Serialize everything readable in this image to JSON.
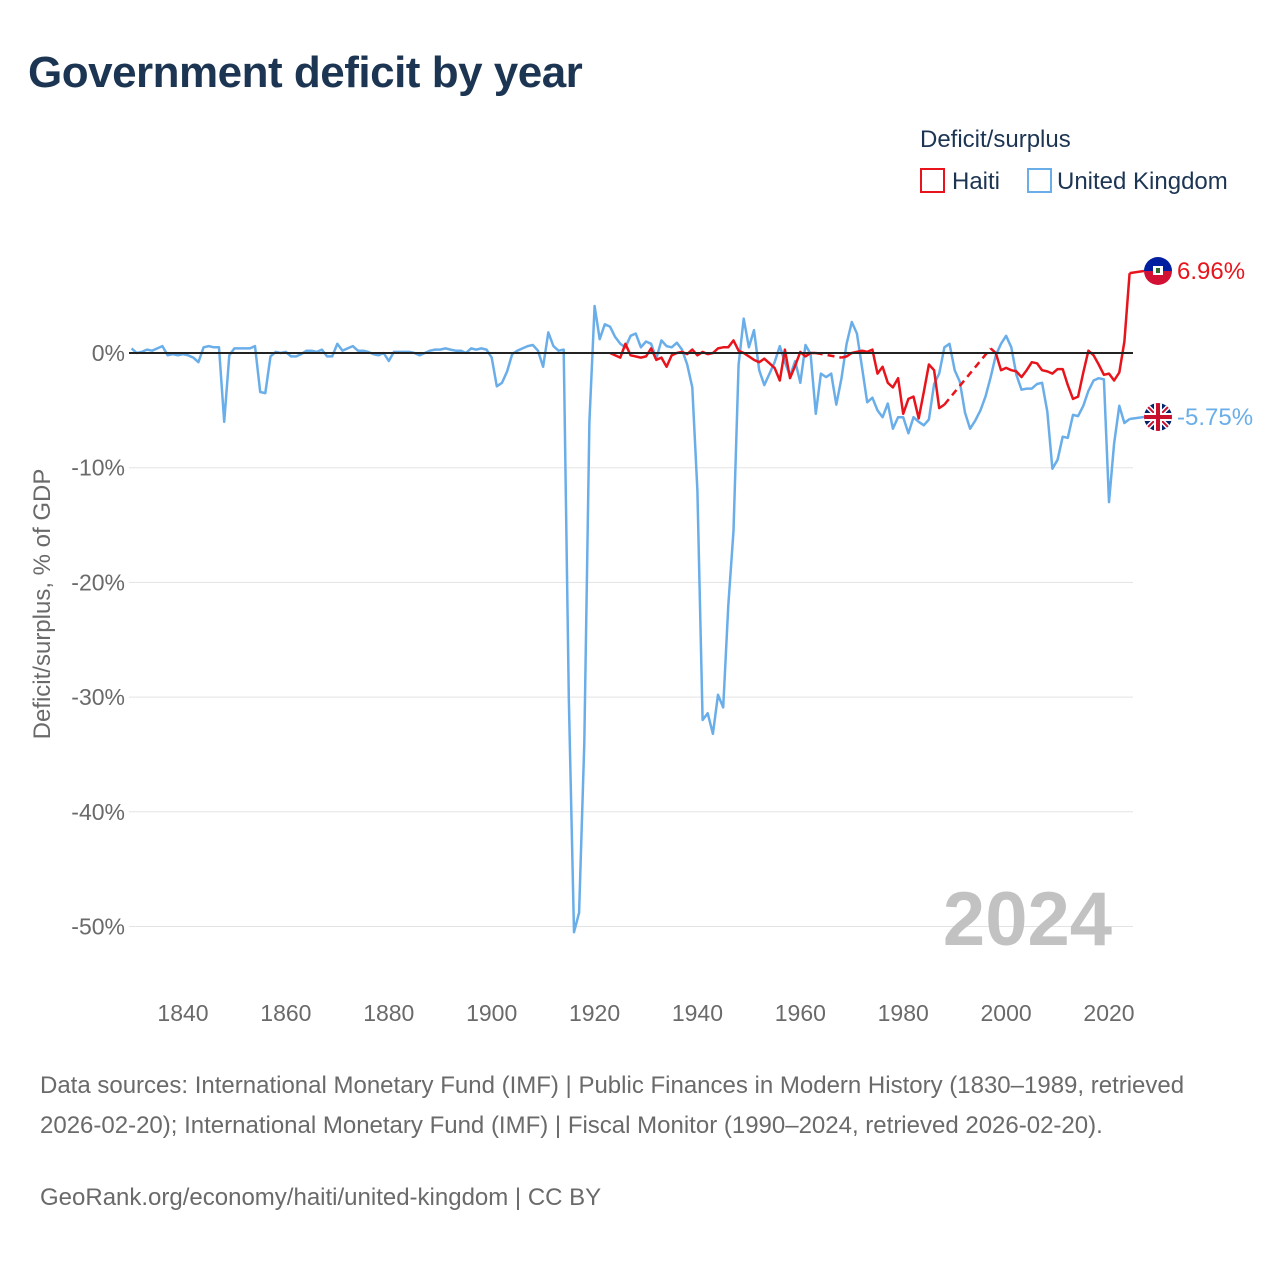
{
  "title": "Government deficit by year",
  "footer": {
    "sources": "Data sources: International Monetary Fund (IMF) | Public Finances in Modern History (1830–1989, retrieved 2026-02-20); International Monetary Fund (IMF) | Fiscal Monitor (1990–2024, retrieved 2026-02-20).",
    "credit": "GeoRank.org/economy/haiti/united-kingdom | CC BY"
  },
  "chart_data": {
    "type": "line",
    "title": "Government deficit by year",
    "ylabel": "Deficit/surplus, % of GDP",
    "xlabel": "",
    "xlim": [
      1830,
      2025
    ],
    "ylim": [
      -55,
      9
    ],
    "year_label": "2024",
    "legend_title": "Deficit/surplus",
    "legend_position": "top-right",
    "x_ticks": [
      1840,
      1860,
      1880,
      1900,
      1920,
      1940,
      1960,
      1980,
      2000,
      2020
    ],
    "x_tick_labels": [
      "1840",
      "1860",
      "1880",
      "1900",
      "1920",
      "1940",
      "1960",
      "1980",
      "2000",
      "2020"
    ],
    "y_ticks": [
      0,
      -10,
      -20,
      -30,
      -40,
      -50
    ],
    "y_tick_labels": [
      "0%",
      "-10%",
      "-20%",
      "-30%",
      "-40%",
      "-50%"
    ],
    "series": [
      {
        "name": "Haiti",
        "color": "#e8141b",
        "end_label": "6.96%",
        "flag": "haiti-flag-icon",
        "points": [
          [
            1923,
            0
          ],
          [
            1925,
            -0.4
          ],
          [
            1926,
            0.8
          ],
          [
            1927,
            -0.2
          ],
          [
            1929,
            -0.4
          ],
          [
            1930,
            -0.3
          ],
          [
            1931,
            0.4
          ],
          [
            1932,
            -0.6
          ],
          [
            1933,
            -0.4
          ],
          [
            1934,
            -1.2
          ],
          [
            1935,
            -0.2
          ],
          [
            1936,
            0
          ],
          [
            1937,
            0.1
          ],
          [
            1938,
            -0.1
          ],
          [
            1939,
            0.3
          ],
          [
            1940,
            -0.2
          ],
          [
            1941,
            0.1
          ],
          [
            1942,
            -0.1
          ],
          [
            1943,
            0
          ],
          [
            1944,
            0.4
          ],
          [
            1945,
            0.5
          ],
          [
            1946,
            0.5
          ],
          [
            1947,
            1.1
          ],
          [
            1948,
            0.2
          ],
          [
            1949,
            0
          ],
          [
            1950,
            -0.3
          ],
          [
            1951,
            -0.6
          ],
          [
            1952,
            -0.8
          ],
          [
            1953,
            -0.5
          ],
          [
            1954,
            -0.9
          ],
          [
            1955,
            -1.3
          ],
          [
            1956,
            -2.4
          ],
          [
            1957,
            0.3
          ],
          [
            1958,
            -2.2
          ],
          [
            1959,
            -1.1
          ],
          [
            1960,
            0.1
          ],
          [
            1961,
            -0.3
          ],
          [
            1962,
            0
          ],
          [
            1963,
            0
          ],
          [
            1968,
            -0.4
          ],
          [
            1969,
            -0.3
          ],
          [
            1970,
            0
          ],
          [
            1971,
            0.1
          ],
          [
            1972,
            0.2
          ],
          [
            1973,
            0.1
          ],
          [
            1974,
            0.3
          ],
          [
            1975,
            -1.8
          ],
          [
            1976,
            -1.2
          ],
          [
            1977,
            -2.6
          ],
          [
            1978,
            -3
          ],
          [
            1979,
            -2.2
          ],
          [
            1980,
            -5.3
          ],
          [
            1981,
            -4
          ],
          [
            1982,
            -3.8
          ],
          [
            1983,
            -5.7
          ],
          [
            1984,
            -3.4
          ],
          [
            1985,
            -1
          ],
          [
            1986,
            -1.5
          ],
          [
            1987,
            -4.8
          ],
          [
            1988,
            -4.5
          ],
          [
            1997,
            0.4
          ],
          [
            1998,
            0
          ],
          [
            1999,
            -1.5
          ],
          [
            2000,
            -1.3
          ],
          [
            2001,
            -1.5
          ],
          [
            2002,
            -1.6
          ],
          [
            2003,
            -2.1
          ],
          [
            2004,
            -1.5
          ],
          [
            2005,
            -0.8
          ],
          [
            2006,
            -0.9
          ],
          [
            2007,
            -1.5
          ],
          [
            2008,
            -1.6
          ],
          [
            2009,
            -1.8
          ],
          [
            2010,
            -1.4
          ],
          [
            2011,
            -1.4
          ],
          [
            2012,
            -2.8
          ],
          [
            2013,
            -4
          ],
          [
            2014,
            -3.8
          ],
          [
            2015,
            -1.7
          ],
          [
            2016,
            0.2
          ],
          [
            2017,
            -0.2
          ],
          [
            2018,
            -1
          ],
          [
            2019,
            -1.9
          ],
          [
            2020,
            -1.8
          ],
          [
            2021,
            -2.4
          ],
          [
            2022,
            -1.7
          ],
          [
            2023,
            1
          ],
          [
            2024,
            6.96
          ]
        ],
        "gaps": [
          [
            1963,
            1968
          ],
          [
            1988,
            1997
          ]
        ]
      },
      {
        "name": "United Kingdom",
        "color": "#6aaee9",
        "end_label": "-5.75%",
        "flag": "uk-flag-icon",
        "points": [
          [
            1830,
            0.4
          ],
          [
            1831,
            0
          ],
          [
            1832,
            0.1
          ],
          [
            1833,
            0.3
          ],
          [
            1834,
            0.2
          ],
          [
            1835,
            0.4
          ],
          [
            1836,
            0.6
          ],
          [
            1837,
            -0.2
          ],
          [
            1838,
            -0.1
          ],
          [
            1839,
            -0.2
          ],
          [
            1840,
            -0.1
          ],
          [
            1841,
            -0.2
          ],
          [
            1842,
            -0.4
          ],
          [
            1843,
            -0.8
          ],
          [
            1844,
            0.5
          ],
          [
            1845,
            0.6
          ],
          [
            1846,
            0.5
          ],
          [
            1847,
            0.5
          ],
          [
            1848,
            -6
          ],
          [
            1849,
            -0.2
          ],
          [
            1850,
            0.4
          ],
          [
            1851,
            0.4
          ],
          [
            1852,
            0.4
          ],
          [
            1853,
            0.4
          ],
          [
            1854,
            0.6
          ],
          [
            1855,
            -3.4
          ],
          [
            1856,
            -3.5
          ],
          [
            1857,
            -0.3
          ],
          [
            1858,
            0.1
          ],
          [
            1859,
            0
          ],
          [
            1860,
            0.1
          ],
          [
            1861,
            -0.3
          ],
          [
            1862,
            -0.3
          ],
          [
            1863,
            -0.1
          ],
          [
            1864,
            0.2
          ],
          [
            1865,
            0.2
          ],
          [
            1866,
            0.1
          ],
          [
            1867,
            0.3
          ],
          [
            1868,
            -0.3
          ],
          [
            1869,
            -0.3
          ],
          [
            1870,
            0.8
          ],
          [
            1871,
            0.2
          ],
          [
            1872,
            0.4
          ],
          [
            1873,
            0.6
          ],
          [
            1874,
            0.2
          ],
          [
            1875,
            0.2
          ],
          [
            1876,
            0.1
          ],
          [
            1877,
            -0.1
          ],
          [
            1878,
            -0.2
          ],
          [
            1879,
            0
          ],
          [
            1880,
            -0.7
          ],
          [
            1881,
            0.1
          ],
          [
            1882,
            0.1
          ],
          [
            1883,
            0.1
          ],
          [
            1884,
            0.1
          ],
          [
            1885,
            0
          ],
          [
            1886,
            -0.2
          ],
          [
            1887,
            0
          ],
          [
            1888,
            0.2
          ],
          [
            1889,
            0.3
          ],
          [
            1890,
            0.3
          ],
          [
            1891,
            0.4
          ],
          [
            1892,
            0.3
          ],
          [
            1893,
            0.2
          ],
          [
            1894,
            0.2
          ],
          [
            1895,
            0
          ],
          [
            1896,
            0.4
          ],
          [
            1897,
            0.3
          ],
          [
            1898,
            0.4
          ],
          [
            1899,
            0.3
          ],
          [
            1900,
            -0.4
          ],
          [
            1901,
            -2.9
          ],
          [
            1902,
            -2.6
          ],
          [
            1903,
            -1.6
          ],
          [
            1904,
            -0.1
          ],
          [
            1905,
            0.2
          ],
          [
            1906,
            0.4
          ],
          [
            1907,
            0.6
          ],
          [
            1908,
            0.7
          ],
          [
            1909,
            0.2
          ],
          [
            1910,
            -1.2
          ],
          [
            1911,
            1.8
          ],
          [
            1912,
            0.6
          ],
          [
            1913,
            0.2
          ],
          [
            1914,
            0.3
          ],
          [
            1915,
            -30
          ],
          [
            1916,
            -50.5
          ],
          [
            1917,
            -48.8
          ],
          [
            1918,
            -34
          ],
          [
            1919,
            -6
          ],
          [
            1920,
            4.1
          ],
          [
            1921,
            1.2
          ],
          [
            1922,
            2.5
          ],
          [
            1923,
            2.3
          ],
          [
            1924,
            1.4
          ],
          [
            1925,
            0.8
          ],
          [
            1926,
            0.5
          ],
          [
            1927,
            1.5
          ],
          [
            1928,
            1.7
          ],
          [
            1929,
            0.5
          ],
          [
            1930,
            1
          ],
          [
            1931,
            0.8
          ],
          [
            1932,
            -0.5
          ],
          [
            1933,
            1.1
          ],
          [
            1934,
            0.6
          ],
          [
            1935,
            0.5
          ],
          [
            1936,
            0.9
          ],
          [
            1937,
            0.3
          ],
          [
            1938,
            -1
          ],
          [
            1939,
            -3
          ],
          [
            1940,
            -12
          ],
          [
            1941,
            -32
          ],
          [
            1942,
            -31.4
          ],
          [
            1943,
            -33.2
          ],
          [
            1944,
            -29.8
          ],
          [
            1945,
            -30.9
          ],
          [
            1946,
            -22
          ],
          [
            1947,
            -15.5
          ],
          [
            1948,
            -1
          ],
          [
            1949,
            3
          ],
          [
            1950,
            0.5
          ],
          [
            1951,
            2
          ],
          [
            1952,
            -1.5
          ],
          [
            1953,
            -2.8
          ],
          [
            1954,
            -1.8
          ],
          [
            1955,
            -0.8
          ],
          [
            1956,
            0.6
          ],
          [
            1957,
            -0.8
          ],
          [
            1958,
            -2
          ],
          [
            1959,
            -0.7
          ],
          [
            1960,
            -2.6
          ],
          [
            1961,
            0.7
          ],
          [
            1962,
            -0.1
          ],
          [
            1963,
            -5.3
          ],
          [
            1964,
            -1.8
          ],
          [
            1965,
            -2.1
          ],
          [
            1966,
            -1.8
          ],
          [
            1967,
            -4.5
          ],
          [
            1968,
            -2.2
          ],
          [
            1969,
            0.8
          ],
          [
            1970,
            2.7
          ],
          [
            1971,
            1.7
          ],
          [
            1972,
            -1.3
          ],
          [
            1973,
            -4.3
          ],
          [
            1974,
            -3.9
          ],
          [
            1975,
            -5
          ],
          [
            1976,
            -5.6
          ],
          [
            1977,
            -4.4
          ],
          [
            1978,
            -6.6
          ],
          [
            1979,
            -5.6
          ],
          [
            1980,
            -5.6
          ],
          [
            1981,
            -7
          ],
          [
            1982,
            -5.6
          ],
          [
            1983,
            -6
          ],
          [
            1984,
            -6.3
          ],
          [
            1985,
            -5.8
          ],
          [
            1986,
            -2.7
          ],
          [
            1987,
            -1.8
          ],
          [
            1988,
            0.5
          ],
          [
            1989,
            0.8
          ],
          [
            1990,
            -1.5
          ],
          [
            1991,
            -2.5
          ],
          [
            1992,
            -5.2
          ],
          [
            1993,
            -6.6
          ],
          [
            1994,
            -5.9
          ],
          [
            1995,
            -5
          ],
          [
            1996,
            -3.8
          ],
          [
            1997,
            -2.1
          ],
          [
            1998,
            -0.2
          ],
          [
            1999,
            0.8
          ],
          [
            2000,
            1.5
          ],
          [
            2001,
            0.5
          ],
          [
            2002,
            -1.9
          ],
          [
            2003,
            -3.2
          ],
          [
            2004,
            -3.1
          ],
          [
            2005,
            -3.1
          ],
          [
            2006,
            -2.7
          ],
          [
            2007,
            -2.6
          ],
          [
            2008,
            -5.1
          ],
          [
            2009,
            -10.1
          ],
          [
            2010,
            -9.3
          ],
          [
            2011,
            -7.3
          ],
          [
            2012,
            -7.4
          ],
          [
            2013,
            -5.4
          ],
          [
            2014,
            -5.5
          ],
          [
            2015,
            -4.6
          ],
          [
            2016,
            -3.3
          ],
          [
            2017,
            -2.4
          ],
          [
            2018,
            -2.2
          ],
          [
            2019,
            -2.3
          ],
          [
            2020,
            -13
          ],
          [
            2021,
            -7.9
          ],
          [
            2022,
            -4.6
          ],
          [
            2023,
            -6.1
          ],
          [
            2024,
            -5.75
          ]
        ]
      }
    ]
  }
}
